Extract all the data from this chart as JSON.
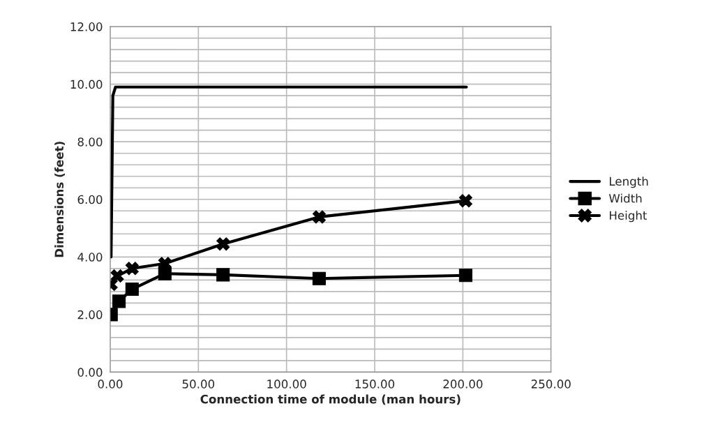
{
  "chart_data": {
    "type": "line",
    "xlabel": "Connection time of module (man hours)",
    "ylabel": "Dimensions (feet)",
    "series": [
      {
        "name": "Length",
        "color": "#000000",
        "marker": "none",
        "x": [
          0.5,
          1.5,
          3,
          202
        ],
        "values": [
          4.0,
          9.6,
          9.9,
          9.9
        ]
      },
      {
        "name": "Width",
        "color": "#000000",
        "marker": "square",
        "x": [
          0.5,
          5,
          12.4,
          31,
          64,
          118.5,
          201.6
        ],
        "values": [
          2.0,
          2.46,
          2.88,
          3.42,
          3.38,
          3.25,
          3.36
        ]
      },
      {
        "name": "Height",
        "color": "#000000",
        "marker": "cross",
        "x": [
          0.5,
          4,
          12.4,
          31,
          64,
          118.5,
          201.6
        ],
        "values": [
          3.05,
          3.34,
          3.6,
          3.77,
          4.45,
          5.39,
          5.95
        ]
      }
    ],
    "xlim": [
      0,
      250
    ],
    "ylim": [
      0,
      12
    ],
    "xticks": [
      {
        "value": 0,
        "label": "0.00"
      },
      {
        "value": 50,
        "label": "50.00"
      },
      {
        "value": 100,
        "label": "100.00"
      },
      {
        "value": 150,
        "label": "150.00"
      },
      {
        "value": 200,
        "label": "200.00"
      },
      {
        "value": 250,
        "label": "250.00"
      }
    ],
    "yticks": [
      {
        "value": 0,
        "label": "0.00"
      },
      {
        "value": 0.4,
        "label": null
      },
      {
        "value": 0.8,
        "label": null
      },
      {
        "value": 1.2,
        "label": null
      },
      {
        "value": 1.6,
        "label": null
      },
      {
        "value": 2,
        "label": "2.00"
      },
      {
        "value": 2.4,
        "label": null
      },
      {
        "value": 2.8,
        "label": null
      },
      {
        "value": 3.2,
        "label": null
      },
      {
        "value": 3.6,
        "label": null
      },
      {
        "value": 4,
        "label": "4.00"
      },
      {
        "value": 4.4,
        "label": null
      },
      {
        "value": 4.8,
        "label": null
      },
      {
        "value": 5.2,
        "label": null
      },
      {
        "value": 5.6,
        "label": null
      },
      {
        "value": 6,
        "label": "6.00"
      },
      {
        "value": 6.4,
        "label": null
      },
      {
        "value": 6.8,
        "label": null
      },
      {
        "value": 7.2,
        "label": null
      },
      {
        "value": 7.6,
        "label": null
      },
      {
        "value": 8,
        "label": "8.00"
      },
      {
        "value": 8.4,
        "label": null
      },
      {
        "value": 8.8,
        "label": null
      },
      {
        "value": 9.2,
        "label": null
      },
      {
        "value": 9.6,
        "label": null
      },
      {
        "value": 10,
        "label": "10.00"
      },
      {
        "value": 10.4,
        "label": null
      },
      {
        "value": 10.8,
        "label": null
      },
      {
        "value": 11.2,
        "label": null
      },
      {
        "value": 11.6,
        "label": null
      },
      {
        "value": 12,
        "label": "12.00"
      }
    ],
    "grid": true,
    "legend": "right",
    "line_style": "solid"
  }
}
